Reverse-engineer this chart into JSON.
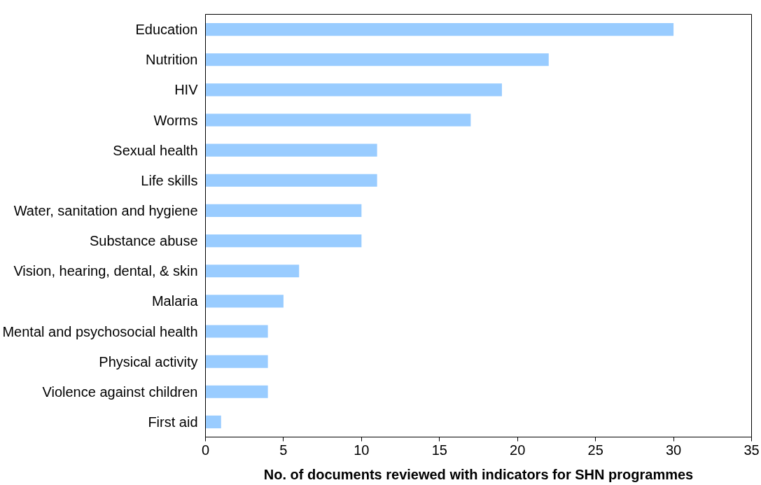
{
  "chart_data": {
    "type": "bar",
    "orientation": "horizontal",
    "xlabel": "No. of documents reviewed with indicators for SHN programmes",
    "categories": [
      "Education",
      "Nutrition",
      "HIV",
      "Worms",
      "Sexual health",
      "Life skills",
      "Water, sanitation and hygiene",
      "Substance abuse",
      "Vision, hearing, dental, & skin",
      "Malaria",
      "Mental and psychosocial health",
      "Physical activity",
      "Violence against children",
      "First aid"
    ],
    "values": [
      30,
      22,
      19,
      17,
      11,
      11,
      10,
      10,
      6,
      5,
      4,
      4,
      4,
      1
    ],
    "color": "#99ccff",
    "xlim": [
      0,
      35
    ],
    "xticks": [
      0,
      5,
      10,
      15,
      20,
      25,
      30,
      35
    ],
    "grid": false
  }
}
